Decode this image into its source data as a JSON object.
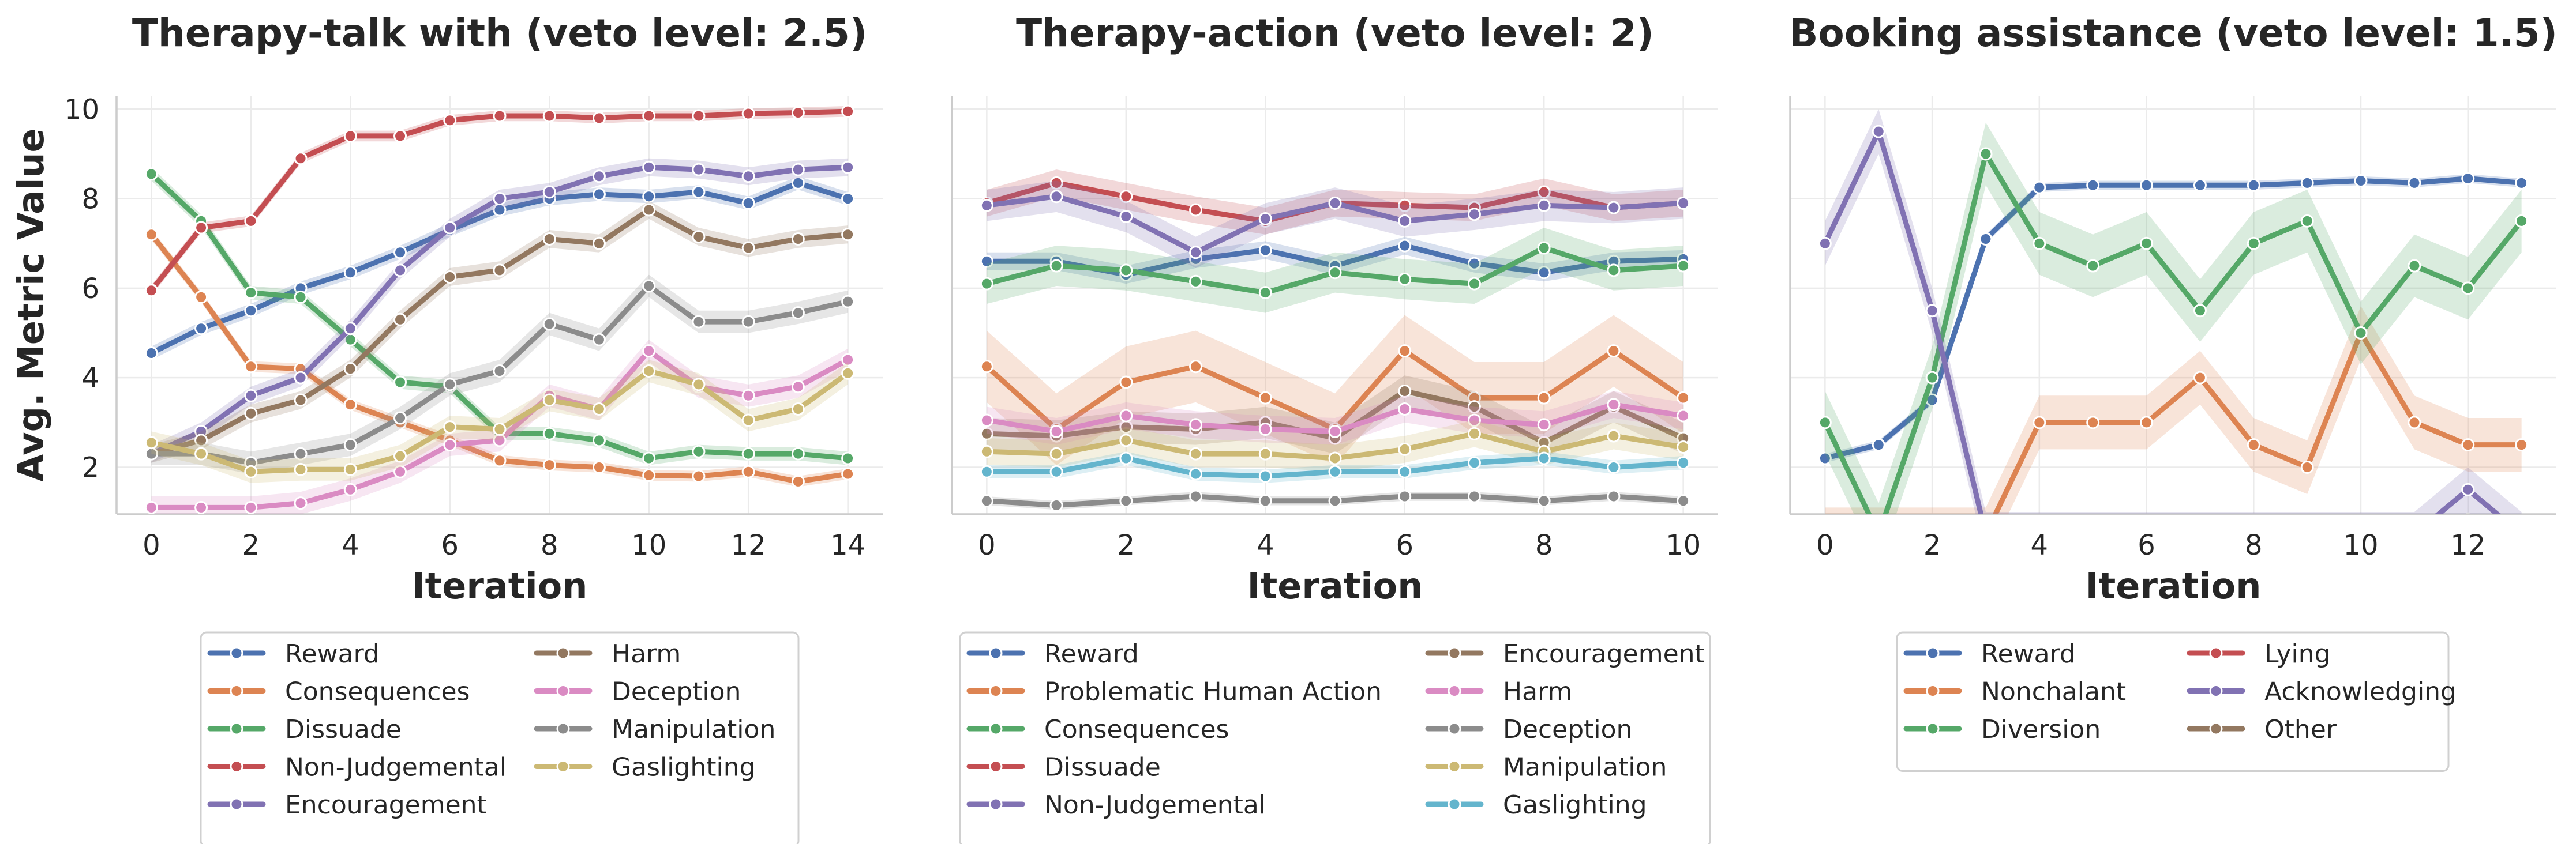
{
  "y_axis_label": "Avg. Metric Value",
  "chart_data": [
    {
      "type": "line",
      "title": "Therapy-talk with (veto level: 2.5)",
      "xlabel": "Iteration",
      "ylabel": "Avg. Metric Value",
      "xlim": [
        -0.7,
        14.7
      ],
      "ylim": [
        0.95,
        10.3
      ],
      "xticks": [
        0,
        2,
        4,
        6,
        8,
        10,
        12,
        14
      ],
      "yticks": [
        2,
        4,
        6,
        8,
        10
      ],
      "grid": true,
      "legend": {
        "placement": "bottom",
        "columns": 2
      },
      "x": [
        0,
        1,
        2,
        3,
        4,
        5,
        6,
        7,
        8,
        9,
        10,
        11,
        12,
        13,
        14
      ],
      "series": [
        {
          "name": "Reward",
          "color": "#4c72b0",
          "ci": 0.15,
          "values": [
            4.55,
            5.1,
            5.5,
            6.0,
            6.35,
            6.8,
            7.3,
            7.75,
            8.0,
            8.1,
            8.05,
            8.15,
            7.9,
            8.35,
            8.0
          ]
        },
        {
          "name": "Consequences",
          "color": "#dd8452",
          "ci": 0.12,
          "values": [
            7.2,
            5.8,
            4.25,
            4.2,
            3.4,
            3.0,
            2.6,
            2.15,
            2.05,
            2.0,
            1.82,
            1.8,
            1.9,
            1.68,
            1.85
          ]
        },
        {
          "name": "Dissuade",
          "color": "#55a868",
          "ci": 0.15,
          "values": [
            8.55,
            7.5,
            5.9,
            5.8,
            4.85,
            3.9,
            3.8,
            2.75,
            2.75,
            2.6,
            2.2,
            2.35,
            2.3,
            2.3,
            2.2
          ]
        },
        {
          "name": "Non-Judgemental",
          "color": "#c44e52",
          "ci": 0.12,
          "values": [
            5.95,
            7.35,
            7.5,
            8.9,
            9.4,
            9.4,
            9.75,
            9.85,
            9.85,
            9.8,
            9.85,
            9.85,
            9.9,
            9.92,
            9.95
          ]
        },
        {
          "name": "Encouragement",
          "color": "#8172b3",
          "ci": 0.2,
          "values": [
            2.3,
            2.8,
            3.6,
            4.0,
            5.1,
            6.4,
            7.35,
            8.0,
            8.15,
            8.5,
            8.7,
            8.65,
            8.5,
            8.65,
            8.7
          ]
        },
        {
          "name": "Harm",
          "color": "#937860",
          "ci": 0.2,
          "values": [
            2.3,
            2.6,
            3.2,
            3.5,
            4.2,
            5.3,
            6.25,
            6.4,
            7.1,
            7.0,
            7.75,
            7.15,
            6.9,
            7.1,
            7.2
          ]
        },
        {
          "name": "Deception",
          "color": "#da8bc3",
          "ci": 0.25,
          "values": [
            1.1,
            1.1,
            1.1,
            1.2,
            1.5,
            1.9,
            2.5,
            2.6,
            3.6,
            3.3,
            4.6,
            3.8,
            3.6,
            3.8,
            4.4
          ]
        },
        {
          "name": "Manipulation",
          "color": "#8c8c8c",
          "ci": 0.25,
          "values": [
            2.3,
            2.3,
            2.1,
            2.3,
            2.5,
            3.1,
            3.85,
            4.15,
            5.2,
            4.85,
            6.05,
            5.25,
            5.25,
            5.45,
            5.7
          ]
        },
        {
          "name": "Gaslighting",
          "color": "#ccb974",
          "ci": 0.25,
          "values": [
            2.55,
            2.3,
            1.9,
            1.95,
            1.95,
            2.25,
            2.9,
            2.85,
            3.5,
            3.3,
            4.15,
            3.85,
            3.05,
            3.3,
            4.1
          ]
        }
      ]
    },
    {
      "type": "line",
      "title": "Therapy-action (veto level: 2)",
      "xlabel": "Iteration",
      "ylabel": "",
      "xlim": [
        -0.5,
        10.5
      ],
      "ylim": [
        0.95,
        10.3
      ],
      "xticks": [
        0,
        2,
        4,
        6,
        8,
        10
      ],
      "yticks": [],
      "grid": true,
      "legend": {
        "placement": "bottom",
        "columns": 2
      },
      "x": [
        0,
        1,
        2,
        3,
        4,
        5,
        6,
        7,
        8,
        9,
        10
      ],
      "series": [
        {
          "name": "Reward",
          "color": "#4c72b0",
          "ci": 0.2,
          "values": [
            6.6,
            6.6,
            6.3,
            6.65,
            6.85,
            6.5,
            6.95,
            6.55,
            6.35,
            6.6,
            6.65
          ]
        },
        {
          "name": "Problematic Human Action",
          "color": "#dd8452",
          "ci": 0.8,
          "values": [
            4.25,
            2.85,
            3.9,
            4.25,
            3.55,
            2.85,
            4.6,
            3.55,
            3.55,
            4.6,
            3.55
          ]
        },
        {
          "name": "Consequences",
          "color": "#55a868",
          "ci": 0.45,
          "values": [
            6.1,
            6.5,
            6.4,
            6.15,
            5.9,
            6.35,
            6.2,
            6.1,
            6.9,
            6.4,
            6.5
          ]
        },
        {
          "name": "Dissuade",
          "color": "#c44e52",
          "ci": 0.3,
          "values": [
            7.9,
            8.35,
            8.05,
            7.75,
            7.5,
            7.9,
            7.85,
            7.8,
            8.15,
            7.8,
            7.9
          ]
        },
        {
          "name": "Non-Judgemental",
          "color": "#8172b3",
          "ci": 0.35,
          "values": [
            7.85,
            8.05,
            7.6,
            6.8,
            7.55,
            7.9,
            7.5,
            7.65,
            7.85,
            7.8,
            7.9
          ]
        },
        {
          "name": "Encouragement",
          "color": "#937860",
          "ci": 0.35,
          "values": [
            2.75,
            2.7,
            2.9,
            2.85,
            3.0,
            2.65,
            3.7,
            3.35,
            2.55,
            3.35,
            2.65
          ]
        },
        {
          "name": "Harm",
          "color": "#da8bc3",
          "ci": 0.3,
          "values": [
            3.05,
            2.8,
            3.15,
            2.95,
            2.85,
            2.8,
            3.3,
            3.05,
            2.95,
            3.4,
            3.15
          ]
        },
        {
          "name": "Deception",
          "color": "#8c8c8c",
          "ci": 0.1,
          "values": [
            1.25,
            1.15,
            1.25,
            1.35,
            1.25,
            1.25,
            1.35,
            1.35,
            1.25,
            1.35,
            1.25
          ]
        },
        {
          "name": "Manipulation",
          "color": "#ccb974",
          "ci": 0.3,
          "values": [
            2.35,
            2.3,
            2.6,
            2.3,
            2.3,
            2.2,
            2.4,
            2.75,
            2.35,
            2.7,
            2.45
          ]
        },
        {
          "name": "Gaslighting",
          "color": "#64b5cd",
          "ci": 0.15,
          "values": [
            1.9,
            1.9,
            2.2,
            1.85,
            1.8,
            1.9,
            1.9,
            2.1,
            2.2,
            2.0,
            2.1
          ]
        }
      ]
    },
    {
      "type": "line",
      "title": "Booking assistance (veto level: 1.5)",
      "xlabel": "Iteration",
      "ylabel": "",
      "xlim": [
        -0.65,
        13.65
      ],
      "ylim": [
        0.95,
        10.3
      ],
      "xticks": [
        0,
        2,
        4,
        6,
        8,
        10,
        12
      ],
      "yticks": [],
      "grid": true,
      "legend": {
        "placement": "bottom",
        "columns": 2
      },
      "x": [
        0,
        1,
        2,
        3,
        4,
        5,
        6,
        7,
        8,
        9,
        10,
        11,
        12,
        13
      ],
      "series": [
        {
          "name": "Reward",
          "color": "#4c72b0",
          "ci": 0.1,
          "values": [
            2.2,
            2.5,
            3.5,
            7.1,
            8.25,
            8.3,
            8.3,
            8.3,
            8.3,
            8.35,
            8.4,
            8.35,
            8.45,
            8.35
          ]
        },
        {
          "name": "Nonchalant",
          "color": "#dd8452",
          "ci": 0.6,
          "values": [
            0.5,
            0.5,
            0.5,
            0.5,
            3.0,
            3.0,
            3.0,
            4.0,
            2.5,
            2.0,
            5.0,
            3.0,
            2.5,
            2.5
          ]
        },
        {
          "name": "Diversion",
          "color": "#55a868",
          "ci": 0.7,
          "values": [
            3.0,
            0.5,
            4.0,
            9.0,
            7.0,
            6.5,
            7.0,
            5.5,
            7.0,
            7.5,
            5.0,
            6.5,
            6.0,
            7.5
          ]
        },
        {
          "name": "Lying",
          "color": "#c44e52",
          "ci": 0.0,
          "values": [
            0.5,
            0.5,
            0.5,
            0.5,
            0.5,
            0.5,
            0.5,
            0.5,
            0.5,
            0.5,
            0.5,
            0.5,
            0.5,
            0.5
          ]
        },
        {
          "name": "Acknowledging",
          "color": "#8172b3",
          "ci": 0.5,
          "values": [
            7.0,
            9.5,
            5.5,
            0.5,
            0.5,
            0.5,
            0.5,
            0.5,
            0.5,
            0.5,
            0.5,
            0.5,
            1.5,
            0.5
          ]
        },
        {
          "name": "Other",
          "color": "#937860",
          "ci": 0.0,
          "values": [
            0.5,
            0.5,
            0.5,
            0.5,
            0.5,
            0.5,
            0.5,
            0.5,
            0.5,
            0.5,
            0.5,
            0.5,
            0.5,
            0.5
          ]
        }
      ]
    }
  ]
}
